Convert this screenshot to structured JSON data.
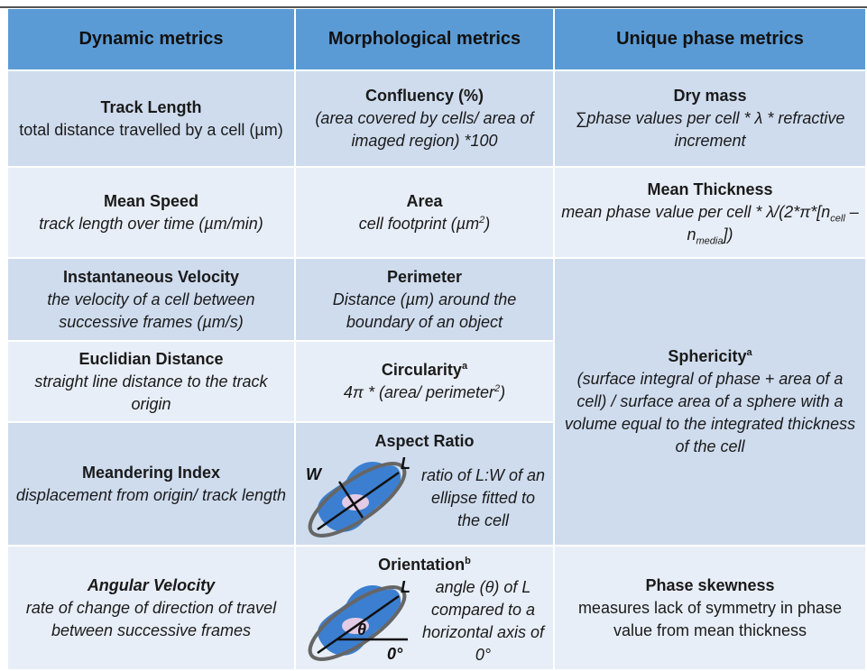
{
  "header": [
    "Dynamic metrics",
    "Morphological metrics",
    "Unique phase metrics"
  ],
  "cells": [
    {
      "title": [
        "Track Length"
      ],
      "desc": [
        "total distance travelled by a cell (µm)"
      ]
    },
    {
      "title": [
        "Confluency (%)"
      ],
      "desc": [
        "(area covered by cells/ area of imaged region) *100"
      ]
    },
    {
      "title": [
        "Dry mass"
      ],
      "desc": [
        "∑phase values per cell * λ * refractive increment"
      ]
    },
    {
      "title": [
        "Mean Speed"
      ],
      "desc": [
        "track length over time (µm/min)"
      ]
    },
    {
      "title": [
        "Area"
      ],
      "desc": [
        "cell footprint (µm",
        {
          "sup": "2"
        },
        ")"
      ]
    },
    {
      "title": [
        "Mean Thickness"
      ],
      "desc": [
        "mean phase value per cell * λ/(2*π*[n",
        {
          "sub": "cell"
        },
        " – n",
        {
          "sub": "media"
        },
        "])"
      ]
    },
    {
      "title": [
        "Instantaneous Velocity"
      ],
      "desc": [
        "the velocity of a cell between successive frames (µm/s)"
      ]
    },
    {
      "title": [
        "Perimeter"
      ],
      "desc": [
        "Distance (µm) around the boundary of an object"
      ]
    },
    {
      "title": [
        "Sphericity",
        {
          "sup": "a"
        }
      ],
      "desc": [
        "(surface integral of phase + area of a cell) / surface area of a sphere with a volume equal to the integrated thickness of the cell"
      ]
    },
    {
      "title": [
        "Euclidian Distance"
      ],
      "desc": [
        "straight line distance to the track origin"
      ]
    },
    {
      "title": [
        "Circularity",
        {
          "sup": "a"
        }
      ],
      "desc": [
        "4π * (area/ perimeter",
        {
          "sup": "2"
        },
        ")"
      ]
    },
    {
      "title": [
        "Meandering Index"
      ],
      "desc": [
        "displacement from origin/ track length"
      ]
    },
    {
      "title": [
        "Aspect Ratio"
      ],
      "desc": [
        "ratio of L:W of an ellipse fitted to the cell"
      ],
      "figure_labels": [
        "W",
        "L"
      ]
    },
    {
      "title": [
        "Angular Velocity"
      ],
      "desc": [
        "rate of change of direction of travel between successive frames"
      ]
    },
    {
      "title": [
        "Orientation",
        {
          "sup": "b"
        }
      ],
      "desc": [
        "angle (θ) of L compared to a horizontal axis of 0°"
      ],
      "figure_labels": [
        "L",
        "θ",
        "0°"
      ]
    },
    {
      "title": [
        "Phase skewness"
      ],
      "desc": [
        "measures lack of symmetry in phase value from mean thickness"
      ]
    }
  ]
}
